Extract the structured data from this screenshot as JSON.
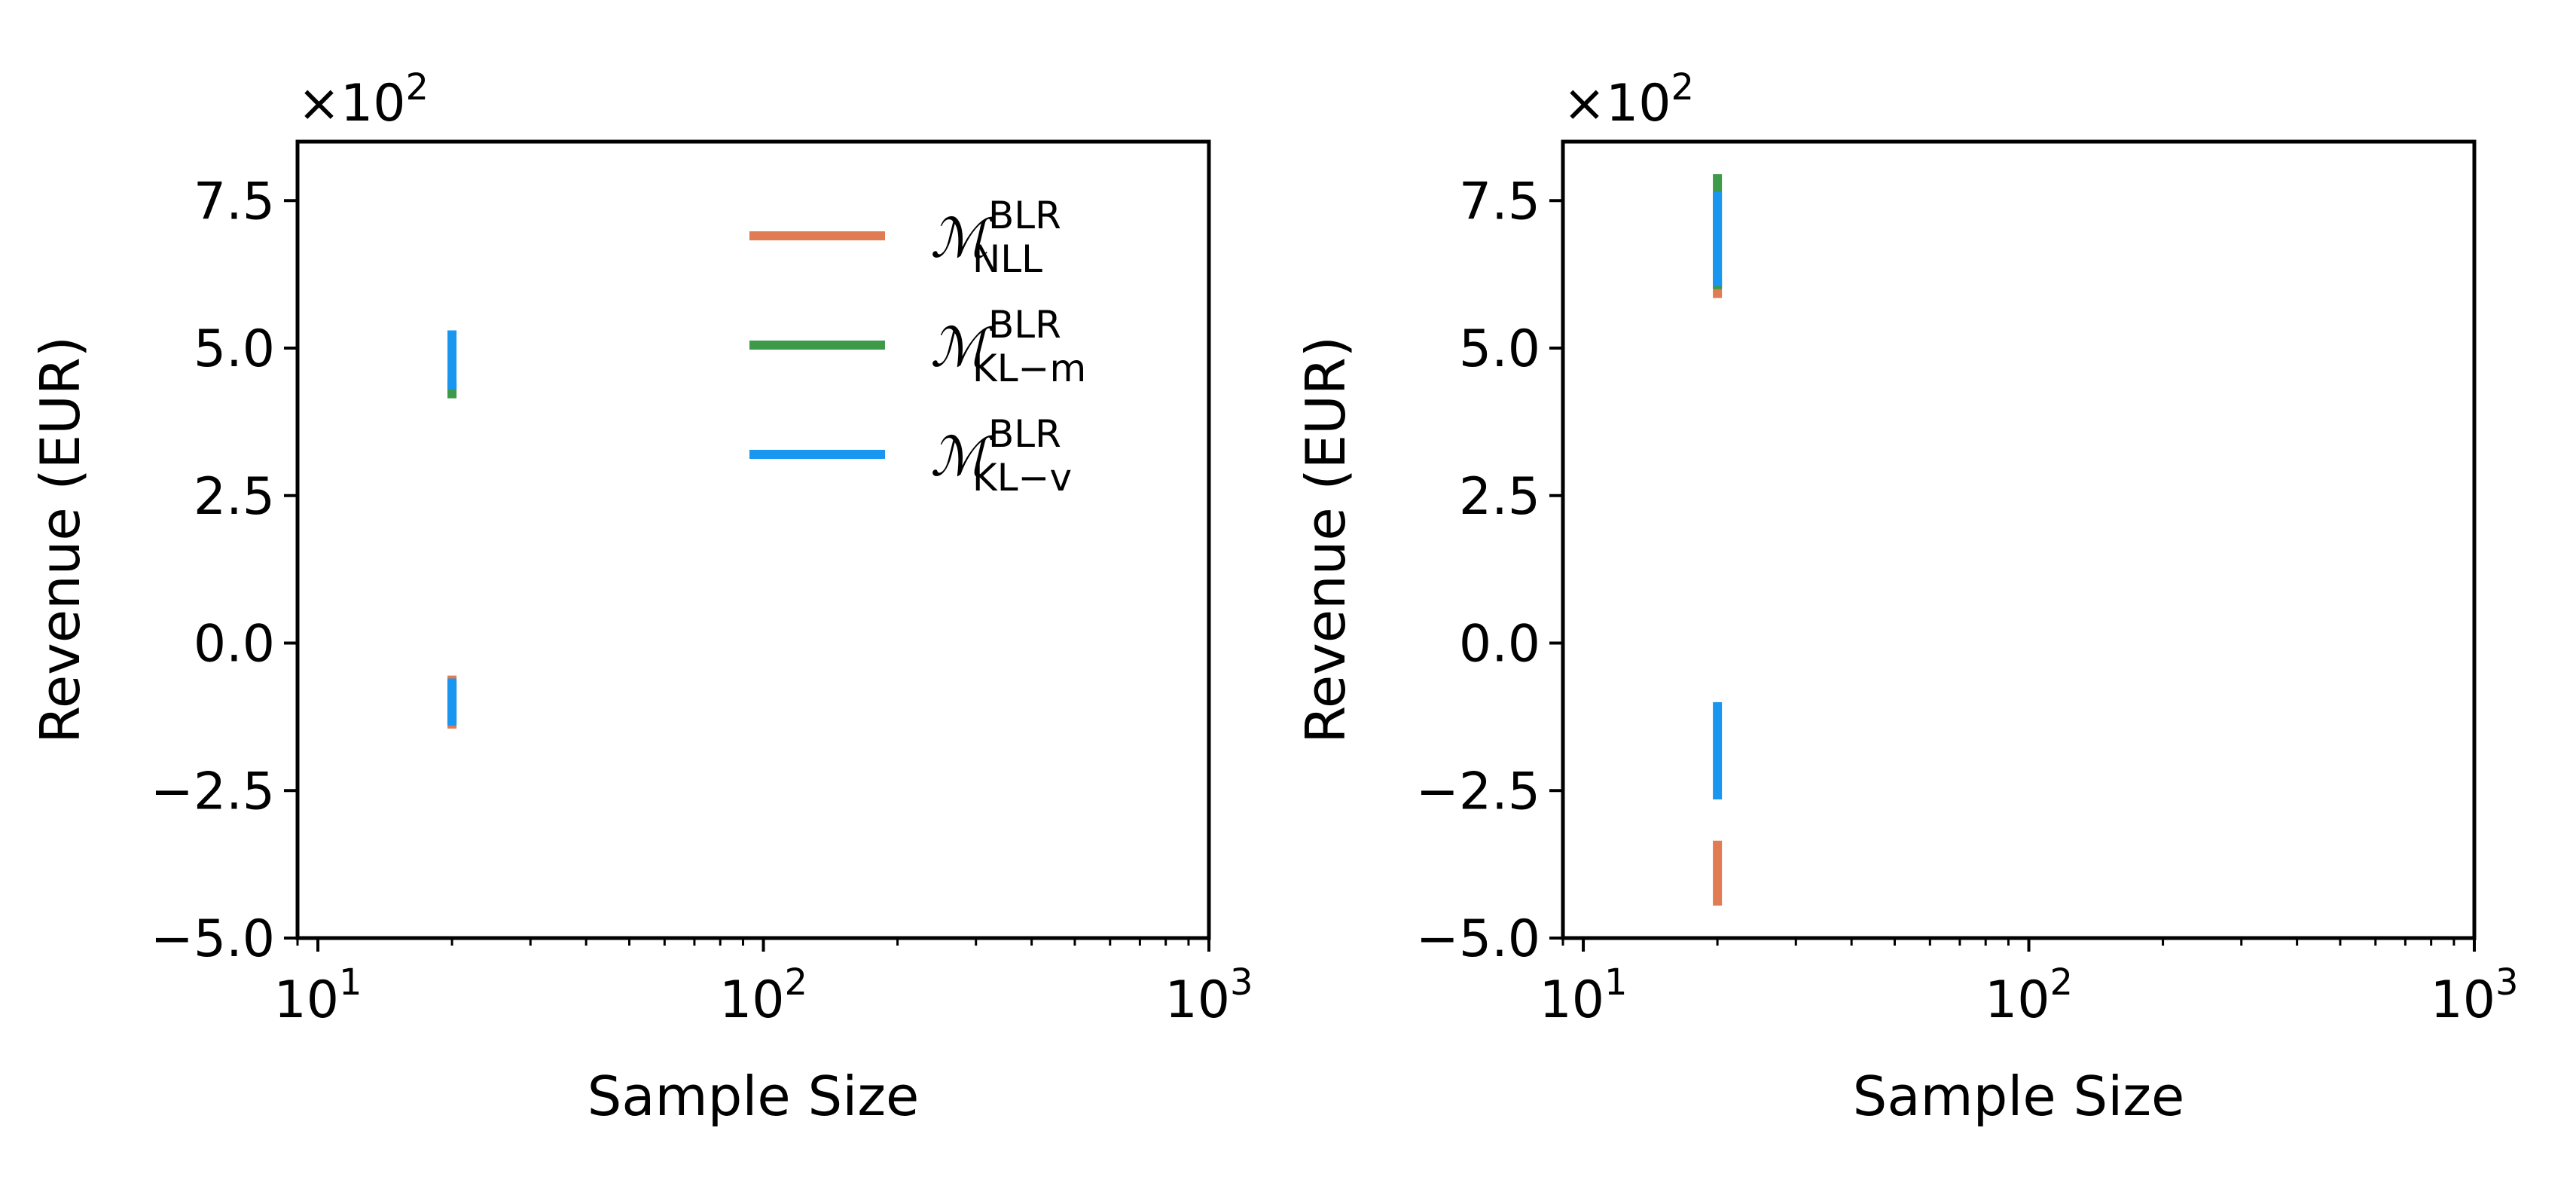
{
  "chart_data": [
    {
      "type": "errorbar",
      "xlabel": "Sample Size",
      "ylabel": "Revenue (EUR)",
      "xscale": "log",
      "xlim": [
        9,
        1000
      ],
      "ylim": [
        -500,
        850
      ],
      "x_ticks": [
        {
          "value": 10,
          "label": "10",
          "exp": "1"
        },
        {
          "value": 100,
          "label": "10",
          "exp": "2"
        },
        {
          "value": 1000,
          "label": "10",
          "exp": "3"
        }
      ],
      "y_ticks": [
        {
          "value": -500,
          "label": "−5.0"
        },
        {
          "value": -250,
          "label": "−2.5"
        },
        {
          "value": 0,
          "label": "0.0"
        },
        {
          "value": 250,
          "label": "2.5"
        },
        {
          "value": 500,
          "label": "5.0"
        },
        {
          "value": 750,
          "label": "7.5"
        }
      ],
      "y_offset": {
        "base": "×10",
        "exp": "2"
      },
      "grid": false,
      "legend": {
        "position": "top-right",
        "entries": [
          {
            "symbol": "ℳ",
            "sup": "BLR",
            "sub": "NLL",
            "color": "#e07b54"
          },
          {
            "symbol": "ℳ",
            "sup": "BLR",
            "sub": "KL−m",
            "color": "#3c9a49"
          },
          {
            "symbol": "ℳ",
            "sup": "BLR",
            "sub": "KL−v",
            "color": "#1896f0"
          }
        ]
      },
      "series": [
        {
          "color": "#e07b54",
          "x": 20,
          "segments": [
            [
              420,
              420
            ],
            [
              -145,
              -55
            ]
          ]
        },
        {
          "color": "#3c9a49",
          "x": 20,
          "segments": [
            [
              415,
              445
            ],
            [
              -135,
              -65
            ]
          ]
        },
        {
          "color": "#1896f0",
          "x": 20,
          "segments": [
            [
              430,
              530
            ],
            [
              -140,
              -60
            ]
          ]
        }
      ]
    },
    {
      "type": "errorbar",
      "xlabel": "Sample Size",
      "ylabel": "Revenue (EUR)",
      "xscale": "log",
      "xlim": [
        9,
        1000
      ],
      "ylim": [
        -500,
        850
      ],
      "x_ticks": [
        {
          "value": 10,
          "label": "10",
          "exp": "1"
        },
        {
          "value": 100,
          "label": "10",
          "exp": "2"
        },
        {
          "value": 1000,
          "label": "10",
          "exp": "3"
        }
      ],
      "y_ticks": [
        {
          "value": -500,
          "label": "−5.0"
        },
        {
          "value": -250,
          "label": "−2.5"
        },
        {
          "value": 0,
          "label": "0.0"
        },
        {
          "value": 250,
          "label": "2.5"
        },
        {
          "value": 500,
          "label": "5.0"
        },
        {
          "value": 750,
          "label": "7.5"
        }
      ],
      "y_offset": {
        "base": "×10",
        "exp": "2"
      },
      "grid": false,
      "series": [
        {
          "color": "#e07b54",
          "x": 20,
          "segments": [
            [
              585,
              620
            ],
            [
              -445,
              -335
            ]
          ]
        },
        {
          "color": "#3c9a49",
          "x": 20,
          "segments": [
            [
              600,
              795
            ]
          ]
        },
        {
          "color": "#1896f0",
          "x": 20,
          "segments": [
            [
              605,
              765
            ],
            [
              -265,
              -100
            ]
          ]
        }
      ]
    }
  ]
}
